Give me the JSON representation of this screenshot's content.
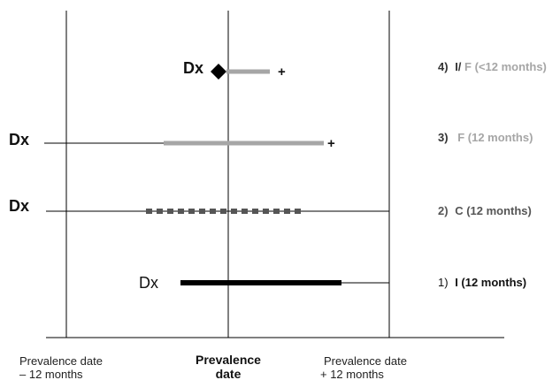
{
  "rows": [
    {
      "dx": "Dx",
      "plus": "+",
      "label": {
        "num": "4)",
        "part1": "I/",
        "part2": "F",
        "part3": " (<12 months)"
      }
    },
    {
      "dx": "Dx",
      "plus": "+",
      "label": {
        "num": "3)",
        "part1": "F",
        "part2": " (12 months)"
      }
    },
    {
      "dx": "Dx",
      "label": {
        "num": "2)",
        "part1": "C (12 months)"
      }
    },
    {
      "dx": "Dx",
      "label": {
        "num": "1)",
        "part1": "I (12 months)"
      }
    }
  ],
  "axis_labels": {
    "left": {
      "line1": "Prevalence date",
      "line2": "– 12 months"
    },
    "center": {
      "line1": "Prevalence",
      "line2": "date"
    },
    "right": {
      "line1": "Prevalence date",
      "line2": "+ 12 months"
    }
  },
  "colors": {
    "black": "#000000",
    "dark_gray": "#555555",
    "light_gray": "#a6a6a6",
    "label_gray": "#8c8c8c"
  }
}
